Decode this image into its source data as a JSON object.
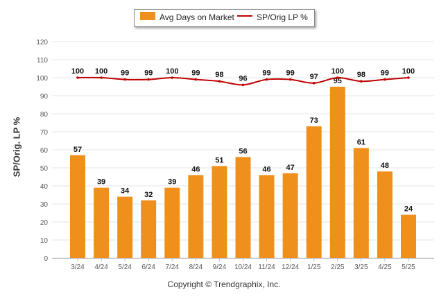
{
  "chart_data": {
    "type": "bar",
    "categories": [
      "3/24",
      "4/24",
      "5/24",
      "6/24",
      "7/24",
      "8/24",
      "9/24",
      "10/24",
      "11/24",
      "12/24",
      "1/25",
      "2/25",
      "3/25",
      "4/25",
      "5/25"
    ],
    "series": [
      {
        "name": "Avg Days on Market",
        "type": "bar",
        "color": "#f0901c",
        "values": [
          57,
          39,
          34,
          32,
          39,
          46,
          51,
          56,
          46,
          47,
          73,
          95,
          61,
          48,
          24
        ]
      },
      {
        "name": "SP/Orig LP %",
        "type": "line",
        "color": "#c00000",
        "values": [
          100,
          100,
          99,
          99,
          100,
          99,
          98,
          96,
          99,
          99,
          97,
          100,
          98,
          99,
          100
        ]
      }
    ],
    "ylabel": "SP/Orig. LP %",
    "ylim": [
      0,
      120
    ],
    "yticks": [
      0,
      10,
      20,
      30,
      40,
      50,
      60,
      70,
      80,
      90,
      100,
      110,
      120
    ],
    "grid": true,
    "legend_position": "top-center"
  },
  "footer": {
    "copyright": "Copyright © Trendgraphix, Inc."
  }
}
